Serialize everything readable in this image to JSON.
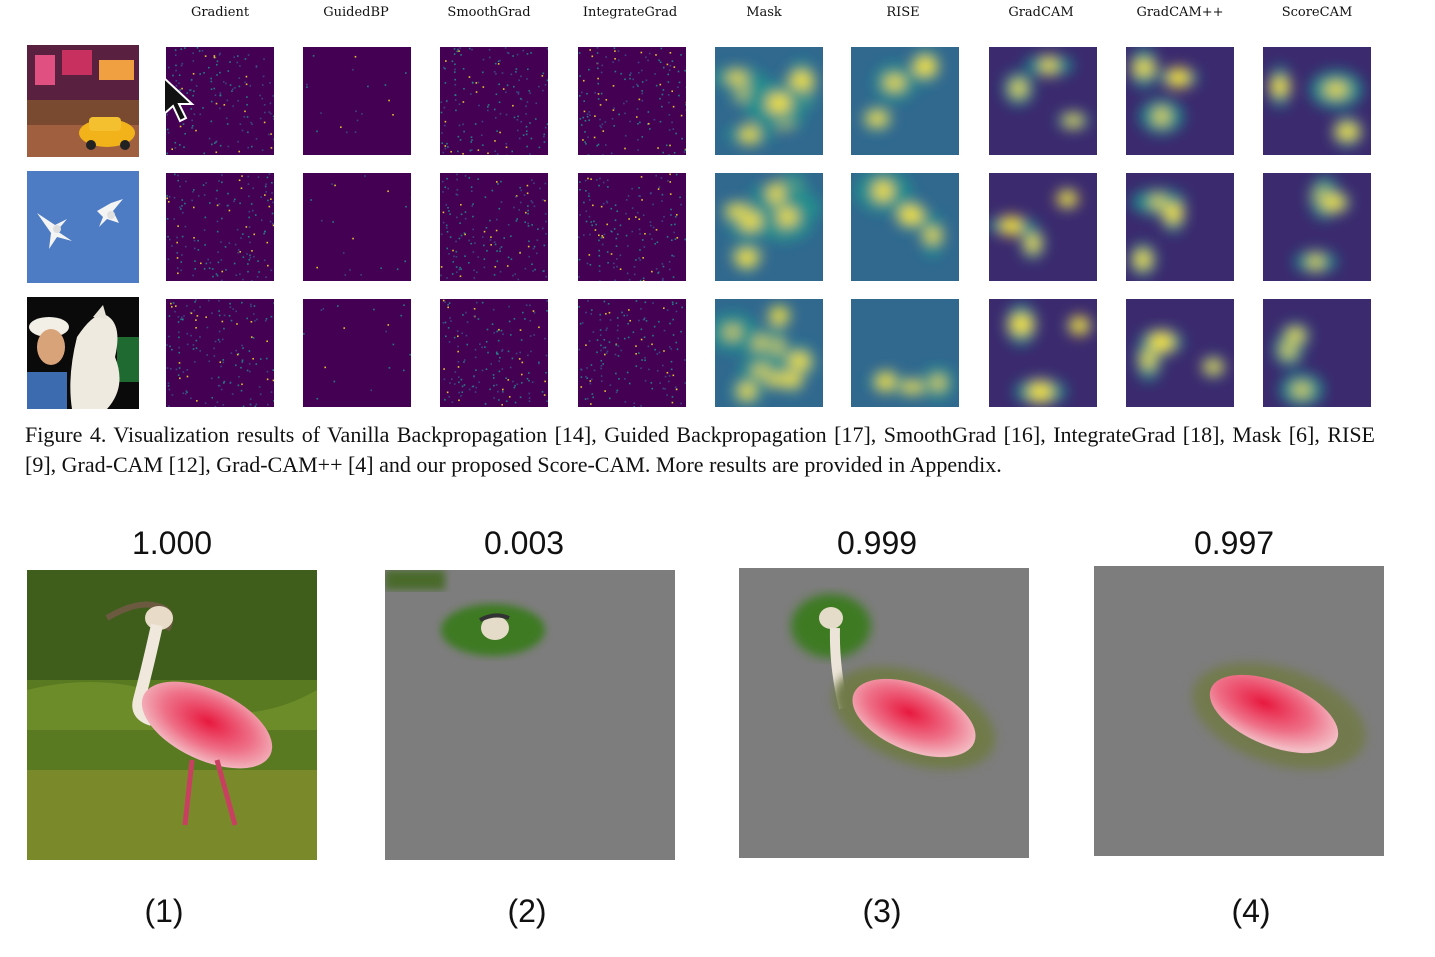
{
  "figure4": {
    "columns": [
      "Gradient",
      "GuidedBP",
      "SmoothGrad",
      "IntegrateGrad",
      "Mask",
      "RISE",
      "GradCAM",
      "GradCAM++",
      "ScoreCAM"
    ],
    "rows": [
      "street-taxi",
      "birds-sky",
      "woman-dog"
    ],
    "caption": "Figure 4. Visualization results of Vanilla Backpropagation [14], Guided Backpropagation [17], SmoothGrad [16], IntegrateGrad [18], Mask [6], RISE [9], Grad-CAM [12], Grad-CAM++ [4] and our proposed Score-CAM. More results are provided in Appendix."
  },
  "figure_bottom": {
    "panels": [
      {
        "score": "1.000",
        "label": "(1)"
      },
      {
        "score": "0.003",
        "label": "(2)"
      },
      {
        "score": "0.999",
        "label": "(3)"
      },
      {
        "score": "0.997",
        "label": "(4)"
      }
    ]
  },
  "colors": {
    "viridis_dark": "#440154",
    "viridis_mid": "#21908d",
    "viridis_bright": "#fde725",
    "masked_gray": "#7d7d7d"
  },
  "icons": [
    "mouse-pointer-icon"
  ]
}
